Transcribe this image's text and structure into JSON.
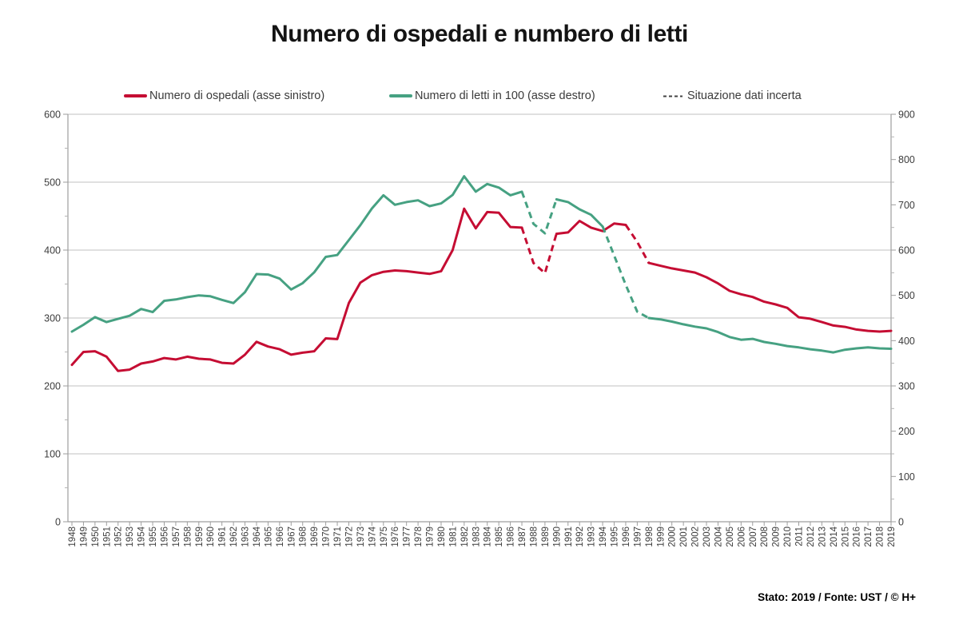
{
  "page": {
    "title": "Numero di ospedali e numbero di letti"
  },
  "legend": {
    "items": [
      {
        "label": "Numero di ospedali (asse sinistro)",
        "swatch": "solid-line",
        "color": "#c50d33"
      },
      {
        "label": "Numero di letti in 100 (asse destro)",
        "swatch": "solid-line",
        "color": "#46a182"
      },
      {
        "label": "Situazione dati incerta",
        "swatch": "dashed-line",
        "color": "#444444"
      }
    ]
  },
  "footer": {
    "text": "Stato: 2019 / Fonte: UST / © H+"
  },
  "chart_data": {
    "type": "line",
    "title": "Numero di ospedali e numbero di letti",
    "grid": true,
    "legend_position": "top",
    "dashed_meaning": "Situazione dati incerta",
    "x": [
      1948,
      1949,
      1950,
      1951,
      1952,
      1953,
      1954,
      1955,
      1956,
      1957,
      1958,
      1959,
      1960,
      1961,
      1962,
      1963,
      1964,
      1965,
      1966,
      1967,
      1968,
      1969,
      1970,
      1971,
      1972,
      1973,
      1974,
      1975,
      1976,
      1977,
      1978,
      1979,
      1980,
      1981,
      1982,
      1983,
      1984,
      1985,
      1986,
      1987,
      1988,
      1989,
      1990,
      1991,
      1992,
      1993,
      1994,
      1995,
      1996,
      1997,
      1998,
      1999,
      2000,
      2001,
      2002,
      2003,
      2004,
      2005,
      2006,
      2007,
      2008,
      2009,
      2010,
      2011,
      2012,
      2013,
      2014,
      2015,
      2016,
      2017,
      2018,
      2019
    ],
    "axes": {
      "left": {
        "min": 0,
        "max": 600,
        "step": 100
      },
      "right": {
        "min": 0,
        "max": 900,
        "step": 100
      }
    },
    "series": [
      {
        "name": "Numero di ospedali (asse sinistro)",
        "key": "ospedali",
        "axis": "left",
        "color": "#c50d33",
        "dashed_ranges": [
          [
            1987,
            1990
          ],
          [
            1996,
            1998
          ]
        ],
        "values": [
          231,
          250,
          251,
          243,
          222,
          224,
          233,
          236,
          241,
          239,
          243,
          240,
          239,
          234,
          233,
          246,
          265,
          258,
          254,
          246,
          249,
          251,
          270,
          269,
          322,
          352,
          363,
          368,
          370,
          369,
          367,
          365,
          369,
          400,
          461,
          432,
          456,
          455,
          434,
          433,
          381,
          366,
          424,
          426,
          443,
          433,
          428,
          439,
          437,
          412,
          381,
          377,
          373,
          370,
          367,
          360,
          351,
          340,
          335,
          331,
          324,
          320,
          315,
          301,
          299,
          294,
          289,
          287,
          283,
          281,
          280,
          281
        ]
      },
      {
        "name": "Numero di letti in 100 (asse destro)",
        "key": "letti",
        "axis": "right",
        "color": "#46a182",
        "dashed_ranges": [
          [
            1987,
            1990
          ],
          [
            1994,
            1998
          ]
        ],
        "values": [
          420,
          435,
          452,
          441,
          448,
          455,
          470,
          463,
          488,
          491,
          496,
          500,
          498,
          490,
          483,
          507,
          547,
          546,
          537,
          513,
          527,
          551,
          585,
          589,
          622,
          655,
          692,
          721,
          700,
          706,
          710,
          697,
          703,
          722,
          763,
          729,
          746,
          738,
          721,
          729,
          658,
          637,
          712,
          706,
          690,
          678,
          652,
          588,
          523,
          464,
          450,
          447,
          442,
          436,
          431,
          427,
          419,
          408,
          402,
          404,
          397,
          393,
          388,
          385,
          381,
          378,
          374,
          380,
          383,
          385,
          383,
          382
        ]
      }
    ]
  }
}
